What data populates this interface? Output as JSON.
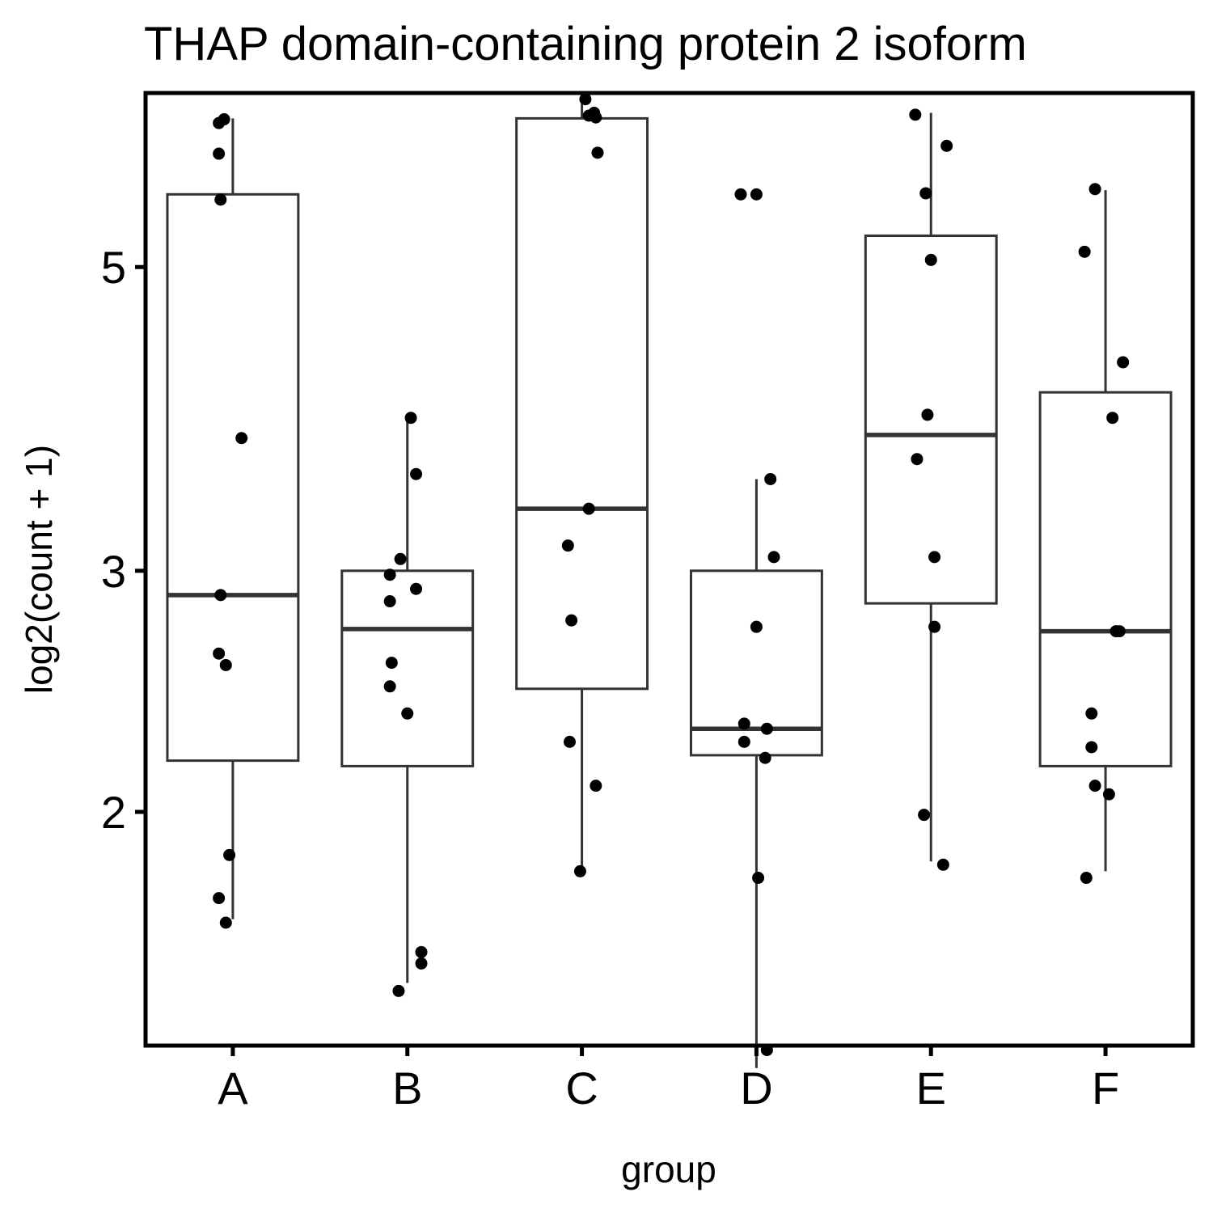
{
  "chart_data": {
    "type": "box",
    "title": "THAP domain-containing protein 2 isoform",
    "xlabel": "group",
    "ylabel": "log2(count + 1)",
    "y_scale": "log2",
    "y_ticks": [
      2,
      3,
      5
    ],
    "ylim": [
      1.35,
      6.7
    ],
    "grid": false,
    "categories": [
      "A",
      "B",
      "C",
      "D",
      "E",
      "F"
    ],
    "boxes": [
      {
        "group": "A",
        "whisker_low": 1.67,
        "q1": 2.18,
        "median": 2.88,
        "q3": 5.65,
        "whisker_high": 6.42
      },
      {
        "group": "B",
        "whisker_low": 1.5,
        "q1": 2.16,
        "median": 2.72,
        "q3": 3.0,
        "whisker_high": 3.88
      },
      {
        "group": "C",
        "whisker_low": 1.82,
        "q1": 2.46,
        "median": 3.33,
        "q3": 6.42,
        "whisker_high": 6.58
      },
      {
        "group": "D",
        "whisker_low": 1.3,
        "q1": 2.2,
        "median": 2.3,
        "q3": 3.0,
        "whisker_high": 3.5
      },
      {
        "group": "E",
        "whisker_low": 1.84,
        "q1": 2.84,
        "median": 3.77,
        "q3": 5.27,
        "whisker_high": 6.48
      },
      {
        "group": "F",
        "whisker_low": 1.81,
        "q1": 2.16,
        "median": 2.71,
        "q3": 4.05,
        "whisker_high": 5.69
      }
    ],
    "points": [
      {
        "group": "A",
        "dx": -0.08,
        "y": 6.37
      },
      {
        "group": "A",
        "dx": -0.05,
        "y": 6.41
      },
      {
        "group": "A",
        "dx": -0.08,
        "y": 6.05
      },
      {
        "group": "A",
        "dx": -0.07,
        "y": 5.6
      },
      {
        "group": "A",
        "dx": 0.05,
        "y": 3.75
      },
      {
        "group": "A",
        "dx": -0.07,
        "y": 2.88
      },
      {
        "group": "A",
        "dx": -0.08,
        "y": 2.61
      },
      {
        "group": "A",
        "dx": -0.04,
        "y": 2.56
      },
      {
        "group": "A",
        "dx": -0.02,
        "y": 1.86
      },
      {
        "group": "A",
        "dx": -0.08,
        "y": 1.73
      },
      {
        "group": "A",
        "dx": -0.04,
        "y": 1.66
      },
      {
        "group": "B",
        "dx": 0.02,
        "y": 3.88
      },
      {
        "group": "B",
        "dx": 0.05,
        "y": 3.53
      },
      {
        "group": "B",
        "dx": -0.04,
        "y": 3.06
      },
      {
        "group": "B",
        "dx": -0.1,
        "y": 2.98
      },
      {
        "group": "B",
        "dx": 0.05,
        "y": 2.91
      },
      {
        "group": "B",
        "dx": -0.1,
        "y": 2.85
      },
      {
        "group": "B",
        "dx": -0.09,
        "y": 2.57
      },
      {
        "group": "B",
        "dx": -0.1,
        "y": 2.47
      },
      {
        "group": "B",
        "dx": 0.0,
        "y": 2.36
      },
      {
        "group": "B",
        "dx": 0.08,
        "y": 1.58
      },
      {
        "group": "B",
        "dx": 0.08,
        "y": 1.55
      },
      {
        "group": "B",
        "dx": -0.05,
        "y": 1.48
      },
      {
        "group": "C",
        "dx": 0.02,
        "y": 6.63
      },
      {
        "group": "C",
        "dx": 0.04,
        "y": 6.45
      },
      {
        "group": "C",
        "dx": 0.07,
        "y": 6.48
      },
      {
        "group": "C",
        "dx": 0.08,
        "y": 6.43
      },
      {
        "group": "C",
        "dx": 0.09,
        "y": 6.06
      },
      {
        "group": "C",
        "dx": 0.04,
        "y": 3.33
      },
      {
        "group": "C",
        "dx": -0.08,
        "y": 3.13
      },
      {
        "group": "C",
        "dx": -0.06,
        "y": 2.76
      },
      {
        "group": "C",
        "dx": -0.07,
        "y": 2.25
      },
      {
        "group": "C",
        "dx": 0.08,
        "y": 2.09
      },
      {
        "group": "C",
        "dx": -0.01,
        "y": 1.81
      },
      {
        "group": "D",
        "dx": -0.09,
        "y": 5.65
      },
      {
        "group": "D",
        "dx": 0.0,
        "y": 5.65
      },
      {
        "group": "D",
        "dx": 0.08,
        "y": 3.5
      },
      {
        "group": "D",
        "dx": 0.1,
        "y": 3.07
      },
      {
        "group": "D",
        "dx": 0.0,
        "y": 2.73
      },
      {
        "group": "D",
        "dx": -0.07,
        "y": 2.32
      },
      {
        "group": "D",
        "dx": 0.06,
        "y": 2.3
      },
      {
        "group": "D",
        "dx": -0.07,
        "y": 2.25
      },
      {
        "group": "D",
        "dx": 0.05,
        "y": 2.19
      },
      {
        "group": "D",
        "dx": 0.01,
        "y": 1.79
      },
      {
        "group": "D",
        "dx": 0.06,
        "y": 1.34
      },
      {
        "group": "E",
        "dx": -0.09,
        "y": 6.46
      },
      {
        "group": "E",
        "dx": 0.09,
        "y": 6.13
      },
      {
        "group": "E",
        "dx": -0.03,
        "y": 5.66
      },
      {
        "group": "E",
        "dx": 0.0,
        "y": 5.06
      },
      {
        "group": "E",
        "dx": -0.02,
        "y": 3.9
      },
      {
        "group": "E",
        "dx": -0.08,
        "y": 3.62
      },
      {
        "group": "E",
        "dx": 0.02,
        "y": 3.07
      },
      {
        "group": "E",
        "dx": 0.02,
        "y": 2.73
      },
      {
        "group": "E",
        "dx": -0.04,
        "y": 1.99
      },
      {
        "group": "E",
        "dx": 0.07,
        "y": 1.83
      },
      {
        "group": "F",
        "dx": -0.06,
        "y": 5.7
      },
      {
        "group": "F",
        "dx": -0.12,
        "y": 5.13
      },
      {
        "group": "F",
        "dx": 0.1,
        "y": 4.26
      },
      {
        "group": "F",
        "dx": 0.04,
        "y": 3.88
      },
      {
        "group": "F",
        "dx": 0.06,
        "y": 2.71
      },
      {
        "group": "F",
        "dx": 0.08,
        "y": 2.71
      },
      {
        "group": "F",
        "dx": -0.08,
        "y": 2.36
      },
      {
        "group": "F",
        "dx": -0.08,
        "y": 2.23
      },
      {
        "group": "F",
        "dx": -0.06,
        "y": 2.09
      },
      {
        "group": "F",
        "dx": 0.02,
        "y": 2.06
      },
      {
        "group": "F",
        "dx": -0.11,
        "y": 1.79
      }
    ]
  }
}
